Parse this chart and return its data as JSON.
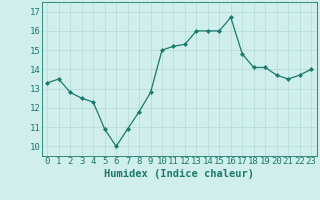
{
  "x": [
    0,
    1,
    2,
    3,
    4,
    5,
    6,
    7,
    8,
    9,
    10,
    11,
    12,
    13,
    14,
    15,
    16,
    17,
    18,
    19,
    20,
    21,
    22,
    23
  ],
  "y": [
    13.3,
    13.5,
    12.8,
    12.5,
    12.3,
    10.9,
    10.0,
    10.9,
    11.8,
    12.8,
    15.0,
    15.2,
    15.3,
    16.0,
    16.0,
    16.0,
    16.7,
    14.8,
    14.1,
    14.1,
    13.7,
    13.5,
    13.7,
    14.0
  ],
  "xlabel": "Humidex (Indice chaleur)",
  "ylabel": "",
  "ylim": [
    9.5,
    17.5
  ],
  "xlim": [
    -0.5,
    23.5
  ],
  "yticks": [
    10,
    11,
    12,
    13,
    14,
    15,
    16,
    17
  ],
  "xticks": [
    0,
    1,
    2,
    3,
    4,
    5,
    6,
    7,
    8,
    9,
    10,
    11,
    12,
    13,
    14,
    15,
    16,
    17,
    18,
    19,
    20,
    21,
    22,
    23
  ],
  "xtick_labels": [
    "0",
    "1",
    "2",
    "3",
    "4",
    "5",
    "6",
    "7",
    "8",
    "9",
    "10",
    "11",
    "12",
    "13",
    "14",
    "15",
    "16",
    "17",
    "18",
    "19",
    "20",
    "21",
    "22",
    "23"
  ],
  "line_color": "#1a7a6e",
  "marker": "D",
  "marker_size": 2,
  "bg_color": "#d0eeeb",
  "grid_color": "#b8ddd9",
  "xlabel_fontsize": 7.5,
  "tick_fontsize": 6.5
}
